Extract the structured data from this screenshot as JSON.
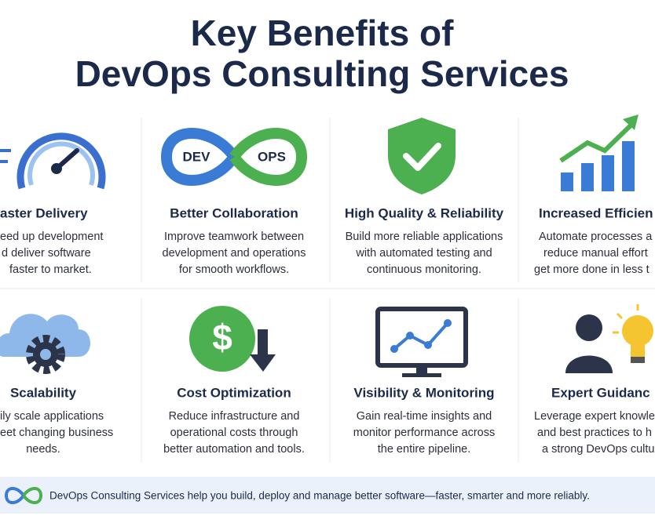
{
  "title": [
    "Key Benefits of",
    "DevOps Consulting Services"
  ],
  "cards": [
    {
      "heading": "aster Delivery",
      "lines": [
        "eed up development",
        "d deliver software",
        "faster to market."
      ]
    },
    {
      "heading": "Better Collaboration",
      "lines": [
        "Improve teamwork between",
        "development and operations",
        "for smooth workflows."
      ]
    },
    {
      "heading": "High Quality & Reliability",
      "lines": [
        "Build more reliable applications",
        "with automated testing and",
        "continuous monitoring."
      ]
    },
    {
      "heading": "Increased Efficien",
      "lines": [
        "Automate processes a",
        "reduce manual effort",
        "get more done in less t"
      ]
    },
    {
      "heading": "Scalability",
      "lines": [
        "ily scale applications",
        "eet changing business",
        "needs."
      ]
    },
    {
      "heading": "Cost Optimization",
      "lines": [
        "Reduce infrastructure and",
        "operational costs through",
        "better automation and tools."
      ]
    },
    {
      "heading": "Visibility & Monitoring",
      "lines": [
        "Gain real-time insights and",
        "monitor performance across",
        "the entire pipeline."
      ]
    },
    {
      "heading": "Expert Guidanc",
      "lines": [
        "Leverage expert knowle",
        "and best practices to h",
        "a strong DevOps cultu"
      ]
    }
  ],
  "icon_labels": {
    "dev": "DEV",
    "ops": "OPS",
    "dollar": "$"
  },
  "footer": "DevOps Consulting Services help you build, deploy and manage better software—faster, smarter and more reliably."
}
